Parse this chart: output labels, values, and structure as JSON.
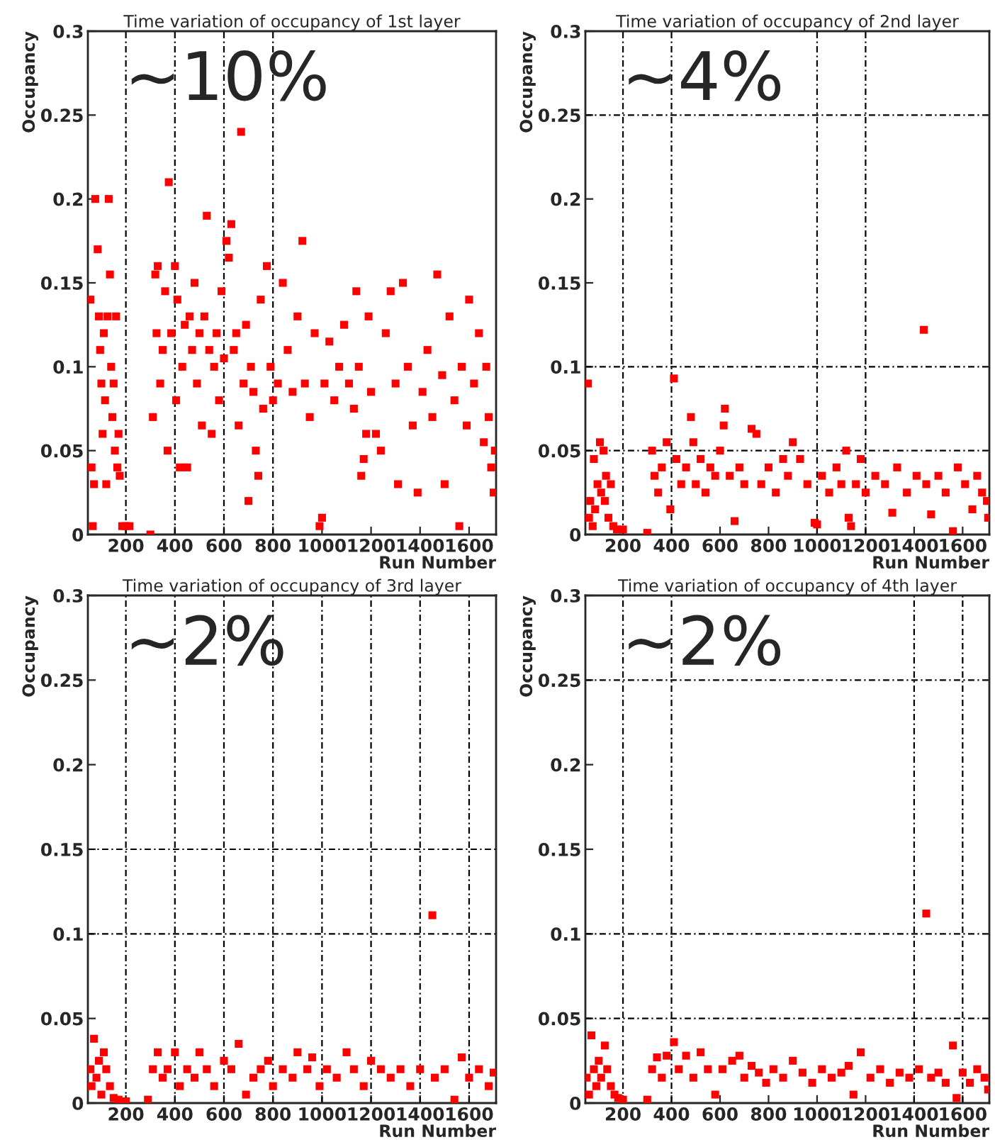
{
  "chart_data": [
    {
      "type": "scatter",
      "title": "Time variation of occupancy of 1st layer",
      "xlabel": "Run Number",
      "ylabel": "Occupancy",
      "annotations": [
        "~10%"
      ],
      "marker": "square",
      "xlim": [
        45,
        1710
      ],
      "ylim": [
        0,
        0.3
      ],
      "xticks": [
        200,
        400,
        600,
        800,
        1000,
        1200,
        1400,
        1600
      ],
      "yticks": [
        0,
        0.05,
        0.1,
        0.15,
        0.2,
        0.25,
        0.3
      ],
      "ref_lines": [
        {
          "axis": "x",
          "value": 200,
          "line_style": "dashed"
        },
        {
          "axis": "x",
          "value": 400,
          "line_style": "dashed"
        },
        {
          "axis": "x",
          "value": 600,
          "line_style": "dashed"
        },
        {
          "axis": "x",
          "value": 800,
          "line_style": "dashed"
        }
      ],
      "series": [
        {
          "color": "#ff0000",
          "x": [
            55,
            60,
            65,
            70,
            75,
            85,
            90,
            95,
            100,
            105,
            110,
            115,
            120,
            125,
            130,
            135,
            140,
            145,
            150,
            155,
            160,
            165,
            170,
            175,
            185,
            200,
            215,
            300,
            310,
            320,
            325,
            330,
            340,
            350,
            360,
            370,
            375,
            385,
            400,
            405,
            410,
            420,
            430,
            440,
            450,
            460,
            470,
            480,
            490,
            500,
            510,
            520,
            530,
            540,
            550,
            560,
            570,
            580,
            590,
            600,
            610,
            620,
            630,
            640,
            650,
            660,
            670,
            680,
            690,
            700,
            710,
            720,
            730,
            740,
            750,
            760,
            775,
            790,
            800,
            820,
            840,
            860,
            880,
            900,
            920,
            930,
            950,
            970,
            990,
            1000,
            1010,
            1030,
            1050,
            1070,
            1090,
            1110,
            1130,
            1140,
            1150,
            1160,
            1170,
            1180,
            1190,
            1200,
            1220,
            1240,
            1260,
            1280,
            1300,
            1310,
            1330,
            1350,
            1370,
            1390,
            1410,
            1430,
            1450,
            1470,
            1490,
            1500,
            1520,
            1540,
            1560,
            1570,
            1590,
            1600,
            1620,
            1640,
            1660,
            1670,
            1680,
            1690,
            1700,
            1705
          ],
          "values": [
            0.14,
            0.04,
            0.005,
            0.03,
            0.2,
            0.17,
            0.13,
            0.11,
            0.09,
            0.06,
            0.12,
            0.08,
            0.03,
            0.13,
            0.2,
            0.155,
            0.1,
            0.07,
            0.09,
            0.05,
            0.13,
            0.04,
            0.06,
            0.035,
            0.005,
            0.005,
            0.005,
            0.0,
            0.07,
            0.155,
            0.12,
            0.16,
            0.09,
            0.11,
            0.145,
            0.05,
            0.21,
            0.12,
            0.16,
            0.08,
            0.14,
            0.04,
            0.1,
            0.125,
            0.04,
            0.13,
            0.11,
            0.15,
            0.09,
            0.12,
            0.065,
            0.13,
            0.19,
            0.11,
            0.06,
            0.1,
            0.12,
            0.08,
            0.145,
            0.105,
            0.175,
            0.165,
            0.185,
            0.11,
            0.12,
            0.065,
            0.24,
            0.09,
            0.125,
            0.02,
            0.1,
            0.085,
            0.05,
            0.035,
            0.14,
            0.075,
            0.16,
            0.1,
            0.08,
            0.09,
            0.15,
            0.11,
            0.085,
            0.13,
            0.175,
            0.09,
            0.07,
            0.12,
            0.005,
            0.01,
            0.09,
            0.115,
            0.08,
            0.1,
            0.125,
            0.09,
            0.075,
            0.145,
            0.1,
            0.035,
            0.045,
            0.06,
            0.13,
            0.085,
            0.06,
            0.05,
            0.12,
            0.145,
            0.09,
            0.03,
            0.15,
            0.1,
            0.065,
            0.025,
            0.085,
            0.11,
            0.07,
            0.155,
            0.095,
            0.03,
            0.13,
            0.08,
            0.005,
            0.1,
            0.065,
            0.14,
            0.09,
            0.12,
            0.055,
            0.1,
            0.07,
            0.04,
            0.025,
            0.05
          ]
        }
      ]
    },
    {
      "type": "scatter",
      "title": "Time variation of occupancy of 2nd layer",
      "xlabel": "Run Number",
      "ylabel": "Occupancy",
      "annotations": [
        "~4%"
      ],
      "marker": "square",
      "xlim": [
        45,
        1710
      ],
      "ylim": [
        0,
        0.3
      ],
      "xticks": [
        200,
        400,
        600,
        800,
        1000,
        1200,
        1400,
        1600
      ],
      "yticks": [
        0,
        0.05,
        0.1,
        0.15,
        0.2,
        0.25,
        0.3
      ],
      "ref_lines": [
        {
          "axis": "x",
          "value": 200,
          "line_style": "dashed"
        },
        {
          "axis": "x",
          "value": 400,
          "line_style": "dashed"
        },
        {
          "axis": "x",
          "value": 1000,
          "line_style": "dashed"
        },
        {
          "axis": "x",
          "value": 1200,
          "line_style": "dashed"
        },
        {
          "axis": "y",
          "value": 0.05,
          "line_style": "dashed"
        },
        {
          "axis": "y",
          "value": 0.1,
          "line_style": "dashed"
        },
        {
          "axis": "y",
          "value": 0.25,
          "line_style": "dashed"
        }
      ],
      "series": [
        {
          "color": "#ff0000",
          "x": [
            55,
            60,
            65,
            75,
            80,
            85,
            95,
            105,
            110,
            120,
            125,
            130,
            140,
            150,
            160,
            175,
            200,
            300,
            320,
            330,
            345,
            360,
            380,
            395,
            410,
            420,
            440,
            460,
            480,
            490,
            500,
            520,
            540,
            560,
            580,
            600,
            615,
            620,
            640,
            660,
            680,
            700,
            730,
            750,
            770,
            800,
            830,
            860,
            880,
            900,
            930,
            960,
            990,
            1000,
            1020,
            1050,
            1080,
            1100,
            1120,
            1130,
            1140,
            1160,
            1180,
            1200,
            1240,
            1280,
            1310,
            1330,
            1370,
            1410,
            1440,
            1450,
            1470,
            1500,
            1530,
            1560,
            1580,
            1610,
            1640,
            1660,
            1680,
            1700,
            1705
          ],
          "values": [
            0.09,
            0.01,
            0.02,
            0.005,
            0.045,
            0.015,
            0.03,
            0.055,
            0.025,
            0.05,
            0.02,
            0.035,
            0.01,
            0.03,
            0.005,
            0.003,
            0.003,
            0.001,
            0.05,
            0.035,
            0.025,
            0.04,
            0.055,
            0.015,
            0.093,
            0.045,
            0.03,
            0.04,
            0.07,
            0.055,
            0.03,
            0.045,
            0.025,
            0.04,
            0.035,
            0.05,
            0.065,
            0.075,
            0.035,
            0.008,
            0.04,
            0.03,
            0.063,
            0.06,
            0.03,
            0.04,
            0.025,
            0.045,
            0.035,
            0.055,
            0.045,
            0.03,
            0.007,
            0.006,
            0.035,
            0.025,
            0.04,
            0.03,
            0.05,
            0.01,
            0.005,
            0.03,
            0.045,
            0.025,
            0.035,
            0.03,
            0.013,
            0.04,
            0.025,
            0.035,
            0.122,
            0.03,
            0.012,
            0.035,
            0.025,
            0.002,
            0.04,
            0.03,
            0.015,
            0.035,
            0.025,
            0.02,
            0.01
          ]
        }
      ]
    },
    {
      "type": "scatter",
      "title": "Time variation of occupancy of 3rd layer",
      "xlabel": "Run Number",
      "ylabel": "Occupancy",
      "annotations": [
        "~2%"
      ],
      "marker": "square",
      "xlim": [
        45,
        1710
      ],
      "ylim": [
        0,
        0.3
      ],
      "xticks": [
        200,
        400,
        600,
        800,
        1000,
        1200,
        1400,
        1600
      ],
      "yticks": [
        0,
        0.05,
        0.1,
        0.15,
        0.2,
        0.25,
        0.3
      ],
      "ref_lines": [
        {
          "axis": "x",
          "value": 200,
          "line_style": "dashed"
        },
        {
          "axis": "x",
          "value": 400,
          "line_style": "dashed"
        },
        {
          "axis": "x",
          "value": 600,
          "line_style": "dashed"
        },
        {
          "axis": "x",
          "value": 800,
          "line_style": "dashed"
        },
        {
          "axis": "x",
          "value": 1000,
          "line_style": "dashed"
        },
        {
          "axis": "x",
          "value": 1200,
          "line_style": "dashed"
        },
        {
          "axis": "x",
          "value": 1400,
          "line_style": "dashed"
        },
        {
          "axis": "x",
          "value": 1600,
          "line_style": "dashed"
        },
        {
          "axis": "y",
          "value": 0.1,
          "line_style": "dashed"
        },
        {
          "axis": "y",
          "value": 0.15,
          "line_style": "dashed"
        }
      ],
      "series": [
        {
          "color": "#ff0000",
          "x": [
            55,
            60,
            70,
            80,
            90,
            100,
            110,
            120,
            135,
            150,
            170,
            200,
            290,
            310,
            330,
            350,
            370,
            400,
            420,
            450,
            480,
            500,
            530,
            560,
            600,
            630,
            660,
            690,
            720,
            750,
            780,
            800,
            840,
            880,
            900,
            940,
            960,
            990,
            1020,
            1060,
            1100,
            1130,
            1170,
            1200,
            1240,
            1280,
            1320,
            1360,
            1400,
            1450,
            1460,
            1500,
            1540,
            1570,
            1600,
            1640,
            1680,
            1700
          ],
          "values": [
            0.02,
            0.01,
            0.038,
            0.015,
            0.025,
            0.005,
            0.03,
            0.02,
            0.01,
            0.003,
            0.002,
            0.001,
            0.002,
            0.02,
            0.03,
            0.015,
            0.02,
            0.03,
            0.01,
            0.02,
            0.015,
            0.03,
            0.02,
            0.01,
            0.025,
            0.02,
            0.035,
            0.005,
            0.015,
            0.02,
            0.025,
            0.01,
            0.02,
            0.015,
            0.03,
            0.02,
            0.027,
            0.01,
            0.02,
            0.015,
            0.03,
            0.02,
            0.01,
            0.025,
            0.02,
            0.015,
            0.02,
            0.01,
            0.02,
            0.111,
            0.015,
            0.02,
            0.002,
            0.027,
            0.015,
            0.02,
            0.01,
            0.018
          ]
        }
      ]
    },
    {
      "type": "scatter",
      "title": "Time variation of occupancy of 4th layer",
      "xlabel": "Run Number",
      "ylabel": "Occupancy",
      "annotations": [
        "~2%"
      ],
      "marker": "square",
      "xlim": [
        45,
        1710
      ],
      "ylim": [
        0,
        0.3
      ],
      "xticks": [
        200,
        400,
        600,
        800,
        1000,
        1200,
        1400,
        1600
      ],
      "yticks": [
        0,
        0.05,
        0.1,
        0.15,
        0.2,
        0.25,
        0.3
      ],
      "ref_lines": [
        {
          "axis": "x",
          "value": 200,
          "line_style": "dashed"
        },
        {
          "axis": "x",
          "value": 400,
          "line_style": "dashed"
        },
        {
          "axis": "x",
          "value": 1400,
          "line_style": "dashed"
        },
        {
          "axis": "x",
          "value": 1600,
          "line_style": "dashed"
        },
        {
          "axis": "y",
          "value": 0.05,
          "line_style": "dashed"
        },
        {
          "axis": "y",
          "value": 0.1,
          "line_style": "dashed"
        },
        {
          "axis": "y",
          "value": 0.25,
          "line_style": "dashed"
        }
      ],
      "series": [
        {
          "color": "#ff0000",
          "x": [
            50,
            60,
            70,
            80,
            90,
            100,
            110,
            125,
            135,
            150,
            165,
            180,
            200,
            300,
            320,
            340,
            360,
            380,
            410,
            430,
            460,
            490,
            520,
            550,
            580,
            610,
            650,
            680,
            700,
            730,
            760,
            790,
            820,
            860,
            900,
            940,
            980,
            1020,
            1060,
            1100,
            1130,
            1150,
            1180,
            1220,
            1260,
            1300,
            1340,
            1380,
            1420,
            1450,
            1470,
            1500,
            1530,
            1560,
            1575,
            1600,
            1630,
            1660,
            1690,
            1705
          ],
          "values": [
            0.015,
            0.005,
            0.04,
            0.02,
            0.01,
            0.025,
            0.015,
            0.034,
            0.02,
            0.01,
            0.005,
            0.003,
            0.002,
            0.002,
            0.02,
            0.027,
            0.015,
            0.028,
            0.036,
            0.02,
            0.028,
            0.015,
            0.03,
            0.02,
            0.005,
            0.02,
            0.025,
            0.028,
            0.015,
            0.022,
            0.018,
            0.012,
            0.02,
            0.015,
            0.025,
            0.018,
            0.012,
            0.02,
            0.015,
            0.018,
            0.022,
            0.005,
            0.03,
            0.015,
            0.02,
            0.012,
            0.018,
            0.015,
            0.02,
            0.112,
            0.015,
            0.018,
            0.012,
            0.034,
            0.003,
            0.018,
            0.012,
            0.02,
            0.015,
            0.008
          ]
        }
      ]
    }
  ]
}
